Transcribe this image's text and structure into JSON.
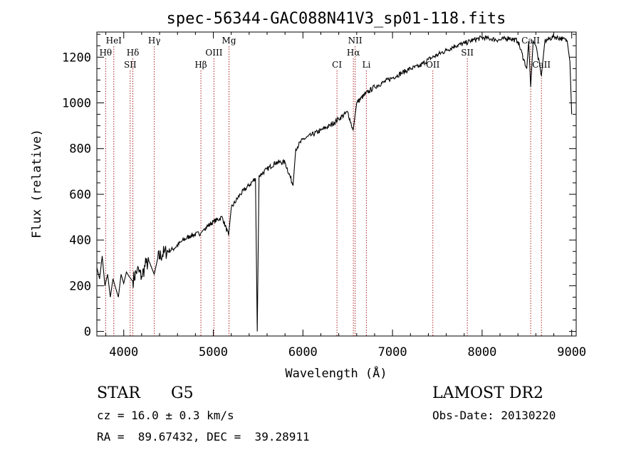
{
  "chart_data": {
    "type": "line",
    "title": "spec-56344-GAC088N41V3_sp01-118.fits",
    "xlabel": "Wavelength (Å)",
    "ylabel": "Flux (relative)",
    "xlim": [
      3700,
      9050
    ],
    "ylim": [
      -20,
      1310
    ],
    "xticks": [
      4000,
      5000,
      6000,
      7000,
      8000,
      9000
    ],
    "yticks": [
      0,
      200,
      400,
      600,
      800,
      1000,
      1200
    ],
    "line_color": "#000000",
    "marker_color": "#aa2222",
    "series": [
      {
        "points": [
          [
            3700,
            280
          ],
          [
            3730,
            230
          ],
          [
            3760,
            330
          ],
          [
            3790,
            200
          ],
          [
            3820,
            250
          ],
          [
            3850,
            150
          ],
          [
            3880,
            230
          ],
          [
            3910,
            190
          ],
          [
            3940,
            150
          ],
          [
            3970,
            250
          ],
          [
            4000,
            210
          ],
          [
            4030,
            260
          ],
          [
            4060,
            240
          ],
          [
            4100,
            220
          ],
          [
            4150,
            270
          ],
          [
            4200,
            240
          ],
          [
            4250,
            300
          ],
          [
            4300,
            290
          ],
          [
            4340,
            250
          ],
          [
            4380,
            320
          ],
          [
            4450,
            345
          ],
          [
            4550,
            360
          ],
          [
            4650,
            395
          ],
          [
            4750,
            420
          ],
          [
            4860,
            430
          ],
          [
            4900,
            450
          ],
          [
            5000,
            480
          ],
          [
            5100,
            500
          ],
          [
            5170,
            420
          ],
          [
            5200,
            540
          ],
          [
            5300,
            600
          ],
          [
            5400,
            640
          ],
          [
            5470,
            670
          ],
          [
            5490,
            0
          ],
          [
            5510,
            680
          ],
          [
            5600,
            710
          ],
          [
            5700,
            740
          ],
          [
            5800,
            740
          ],
          [
            5890,
            640
          ],
          [
            5920,
            800
          ],
          [
            6000,
            840
          ],
          [
            6100,
            860
          ],
          [
            6200,
            880
          ],
          [
            6300,
            900
          ],
          [
            6400,
            930
          ],
          [
            6500,
            960
          ],
          [
            6560,
            880
          ],
          [
            6600,
            1000
          ],
          [
            6700,
            1040
          ],
          [
            6800,
            1070
          ],
          [
            6900,
            1090
          ],
          [
            7000,
            1110
          ],
          [
            7100,
            1130
          ],
          [
            7200,
            1150
          ],
          [
            7300,
            1160
          ],
          [
            7400,
            1190
          ],
          [
            7500,
            1210
          ],
          [
            7600,
            1230
          ],
          [
            7700,
            1250
          ],
          [
            7800,
            1260
          ],
          [
            7900,
            1275
          ],
          [
            8000,
            1285
          ],
          [
            8100,
            1280
          ],
          [
            8200,
            1275
          ],
          [
            8300,
            1285
          ],
          [
            8400,
            1270
          ],
          [
            8498,
            1150
          ],
          [
            8520,
            1270
          ],
          [
            8542,
            1070
          ],
          [
            8570,
            1270
          ],
          [
            8600,
            1250
          ],
          [
            8662,
            1120
          ],
          [
            8700,
            1270
          ],
          [
            8800,
            1290
          ],
          [
            8900,
            1280
          ],
          [
            8950,
            1270
          ],
          [
            8980,
            1180
          ],
          [
            9000,
            950
          ]
        ]
      }
    ],
    "lines": [
      {
        "label": "Hθ",
        "x": 3798,
        "row": 2
      },
      {
        "label": "HeI",
        "x": 3889,
        "row": 1
      },
      {
        "label": "Hδ",
        "x": 4102,
        "row": 2
      },
      {
        "label": "SII",
        "x": 4072,
        "row": 3
      },
      {
        "label": "Hγ",
        "x": 4341,
        "row": 1
      },
      {
        "label": "Hβ",
        "x": 4861,
        "row": 3
      },
      {
        "label": "OIII",
        "x": 5007,
        "row": 2
      },
      {
        "label": "Mg",
        "x": 5175,
        "row": 1
      },
      {
        "label": "CI",
        "x": 6380,
        "row": 3
      },
      {
        "label": "NII",
        "x": 6583,
        "row": 1
      },
      {
        "label": "Hα",
        "x": 6563,
        "row": 2
      },
      {
        "label": "Li",
        "x": 6708,
        "row": 3
      },
      {
        "label": "OII",
        "x": 7450,
        "row": 3
      },
      {
        "label": "SII",
        "x": 7835,
        "row": 2
      },
      {
        "label": "CaII",
        "x": 8542,
        "row": 1
      },
      {
        "label": "CaII",
        "x": 8662,
        "row": 3
      }
    ]
  },
  "info": {
    "class": "STAR",
    "subclass": "G5",
    "survey": "LAMOST DR2",
    "cz": "cz = 16.0 ± 0.3 km/s",
    "obs_date": "Obs-Date: 20130220",
    "coords": "RA =  89.67432, DEC =  39.28911"
  }
}
